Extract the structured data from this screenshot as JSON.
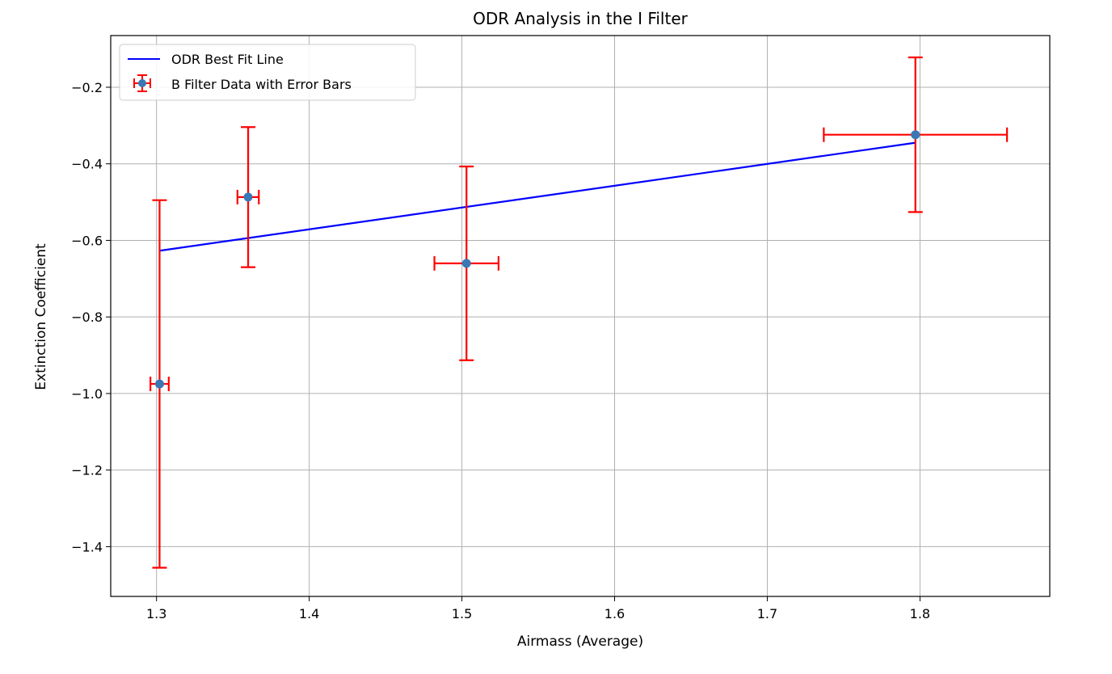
{
  "chart_data": {
    "type": "scatter",
    "title": "ODR Analysis in the I Filter",
    "xlabel": "Airmass (Average)",
    "ylabel": "Extinction Coefficient",
    "xlim": [
      1.27,
      1.885
    ],
    "ylim": [
      -1.53,
      -0.065
    ],
    "xticks": [
      1.3,
      1.4,
      1.5,
      1.6,
      1.7,
      1.8
    ],
    "xtick_labels": [
      "1.3",
      "1.4",
      "1.5",
      "1.6",
      "1.7",
      "1.8"
    ],
    "yticks": [
      -0.2,
      -0.4,
      -0.6,
      -0.8,
      -1.0,
      -1.2,
      -1.4
    ],
    "ytick_labels": [
      "−0.2",
      "−0.4",
      "−0.6",
      "−0.8",
      "−1.0",
      "−1.2",
      "−1.4"
    ],
    "grid": true,
    "legend_position": "top-left",
    "series": [
      {
        "name": "ODR Best Fit Line",
        "kind": "line",
        "color": "#0000ff",
        "x": [
          1.302,
          1.797
        ],
        "y": [
          -0.627,
          -0.345
        ]
      },
      {
        "name": "B Filter Data with Error Bars",
        "kind": "errorbar",
        "marker_color": "#3a78b5",
        "errorbar_color": "#ff0000",
        "points": [
          {
            "x": 1.302,
            "y": -0.975,
            "xerr": 0.006,
            "yerr": 0.48
          },
          {
            "x": 1.36,
            "y": -0.487,
            "xerr": 0.007,
            "yerr": 0.183
          },
          {
            "x": 1.503,
            "y": -0.66,
            "xerr": 0.021,
            "yerr": 0.253
          },
          {
            "x": 1.797,
            "y": -0.324,
            "xerr": 0.06,
            "yerr": 0.202
          }
        ]
      }
    ]
  }
}
